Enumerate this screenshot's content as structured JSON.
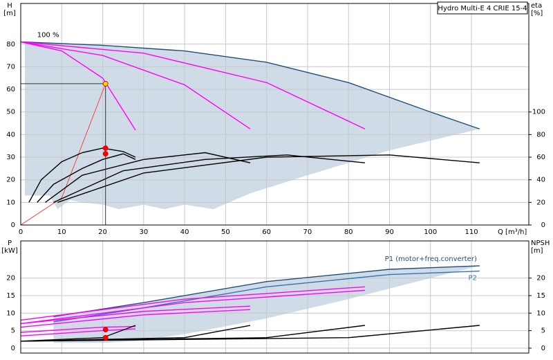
{
  "chart_data": [
    {
      "type": "line",
      "title": "Hydro Multi-E 4 CRIE 15-4",
      "y_label": [
        "H",
        "[m]"
      ],
      "y2_label": [
        "eta",
        "[%]"
      ],
      "x_label": "Q [m³/h]",
      "annotation": "100 %",
      "xlim": [
        0,
        124
      ],
      "xticks": [
        0,
        10,
        20,
        30,
        40,
        50,
        60,
        70,
        80,
        90,
        100,
        110
      ],
      "ylim": [
        0,
        98
      ],
      "yticks": [
        0,
        10,
        20,
        30,
        40,
        50,
        60,
        70,
        80
      ],
      "y2lim": [
        0,
        196
      ],
      "y2ticks": [
        0,
        20,
        40,
        60,
        80,
        100
      ],
      "grid": true,
      "area": {
        "color": "#cfdbe6",
        "x": [
          1,
          20,
          40,
          60,
          80,
          100,
          112,
          90,
          70,
          56,
          47,
          40,
          35,
          30,
          24,
          20,
          15,
          12,
          9,
          7,
          5,
          1
        ],
        "y": [
          81,
          79.5,
          77,
          72,
          63,
          50,
          42.5,
          33,
          22,
          14,
          7,
          9,
          7,
          9,
          7,
          9,
          10,
          11,
          7,
          13,
          13,
          13
        ]
      },
      "series": [
        {
          "color": "#1f4e79",
          "x": [
            0,
            20,
            40,
            60,
            80,
            100,
            112
          ],
          "values": [
            81,
            79.5,
            77,
            72,
            63,
            50,
            42.5
          ]
        },
        {
          "color": "#ff00ff",
          "x": [
            0,
            10,
            20,
            28
          ],
          "values": [
            81,
            77,
            65,
            42
          ]
        },
        {
          "color": "#ff00ff",
          "x": [
            0,
            20,
            40,
            56
          ],
          "values": [
            81,
            75,
            62,
            42.5
          ]
        },
        {
          "color": "#ff00ff",
          "x": [
            0,
            30,
            60,
            84
          ],
          "values": [
            81,
            76,
            63,
            42.5
          ]
        },
        {
          "color": "#ff2020",
          "x": [
            0,
            10,
            20.7
          ],
          "values": [
            0,
            12,
            62.5
          ]
        },
        {
          "color": "#000000",
          "axis": "y2",
          "x": [
            2,
            5,
            10,
            15,
            20,
            25,
            28
          ],
          "values": [
            20,
            40,
            56,
            64,
            68,
            65,
            60
          ]
        },
        {
          "color": "#000000",
          "axis": "y2",
          "x": [
            4,
            8,
            15,
            20,
            25,
            28
          ],
          "values": [
            20,
            36,
            50,
            58,
            63,
            58
          ]
        },
        {
          "color": "#000000",
          "axis": "y2",
          "x": [
            6,
            15,
            30,
            45,
            56
          ],
          "values": [
            20,
            44,
            58,
            64,
            55
          ]
        },
        {
          "color": "#000000",
          "axis": "y2",
          "x": [
            8,
            25,
            45,
            65,
            84
          ],
          "values": [
            20,
            48,
            58,
            62,
            55
          ]
        },
        {
          "color": "#000000",
          "axis": "y2",
          "x": [
            9,
            30,
            60,
            90,
            112
          ],
          "values": [
            20,
            46,
            60,
            62,
            55
          ]
        }
      ],
      "points": [
        {
          "color": "#ffd700",
          "x": 20.7,
          "y": 62.5
        },
        {
          "color": "#ff0000",
          "axis": "y2",
          "x": 20.7,
          "y": 68
        },
        {
          "color": "#ff0000",
          "axis": "y2",
          "x": 20.7,
          "y": 63
        }
      ]
    },
    {
      "type": "line",
      "y_label": [
        "P",
        "[kW]"
      ],
      "y2_label": [
        "NPSH",
        "[m]"
      ],
      "xlim": [
        0,
        124
      ],
      "xticks": [
        0,
        10,
        20,
        30,
        40,
        50,
        60,
        70,
        80,
        90,
        100,
        110
      ],
      "ylim": [
        -1.4,
        30.6
      ],
      "yticks": [
        0,
        5,
        10,
        15,
        20
      ],
      "y2lim": [
        -1.4,
        30.6
      ],
      "y2ticks": [
        0,
        5,
        10,
        15,
        20
      ],
      "grid": true,
      "area": {
        "color": "#cfdbe6",
        "x": [
          8,
          30,
          60,
          90,
          112,
          100,
          80,
          60,
          40,
          28,
          20,
          8
        ],
        "y": [
          9,
          13,
          19,
          22.5,
          23.5,
          20,
          14,
          8.5,
          4,
          2,
          1.5,
          1.5
        ]
      },
      "series": [
        {
          "name": "P1 (motor+freq.converter)",
          "color": "#1f4e79",
          "x": [
            8,
            30,
            60,
            90,
            112
          ],
          "values": [
            9,
            13,
            19,
            22.5,
            23.5
          ]
        },
        {
          "name": "P2",
          "color": "#2e75b6",
          "x": [
            8,
            30,
            60,
            90,
            112
          ],
          "values": [
            7.5,
            11.5,
            17.5,
            21,
            22
          ]
        },
        {
          "color": "#ff00ff",
          "x": [
            0,
            20,
            28
          ],
          "values": [
            4.5,
            6,
            6.2
          ]
        },
        {
          "color": "#ff00ff",
          "x": [
            0,
            20,
            28
          ],
          "values": [
            3.5,
            5,
            5.5
          ]
        },
        {
          "color": "#ff00ff",
          "x": [
            0,
            30,
            56
          ],
          "values": [
            7,
            10.5,
            12
          ]
        },
        {
          "color": "#ff00ff",
          "x": [
            0,
            30,
            56
          ],
          "values": [
            6,
            9.5,
            11
          ]
        },
        {
          "color": "#ff00ff",
          "x": [
            0,
            40,
            84
          ],
          "values": [
            8,
            14,
            17.5
          ]
        },
        {
          "color": "#ff00ff",
          "x": [
            0,
            40,
            84
          ],
          "values": [
            7,
            13,
            16.5
          ]
        },
        {
          "color": "#000000",
          "axis": "y2",
          "x": [
            0,
            20,
            28
          ],
          "values": [
            2,
            3,
            6.5
          ]
        },
        {
          "color": "#000000",
          "axis": "y2",
          "x": [
            0,
            40,
            56
          ],
          "values": [
            2,
            3,
            6.5
          ]
        },
        {
          "color": "#000000",
          "axis": "y2",
          "x": [
            0,
            60,
            84
          ],
          "values": [
            2,
            3,
            6.5
          ]
        },
        {
          "color": "#000000",
          "axis": "y2",
          "x": [
            0,
            80,
            112
          ],
          "values": [
            2,
            3,
            6.5
          ]
        }
      ],
      "points": [
        {
          "color": "#ff0000",
          "x": 20.7,
          "y": 5.3
        },
        {
          "color": "#ff0000",
          "axis": "y2",
          "x": 20.7,
          "y": 3
        }
      ]
    }
  ]
}
